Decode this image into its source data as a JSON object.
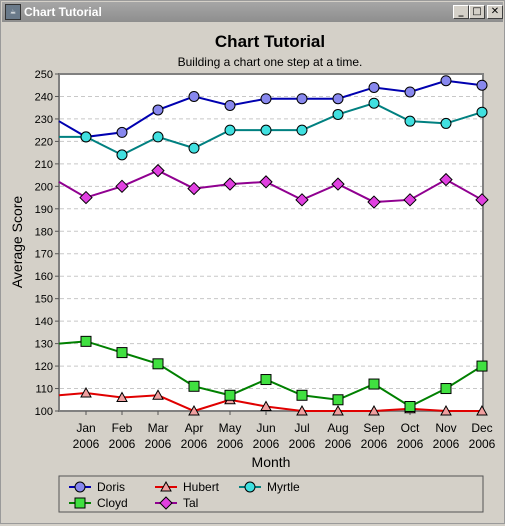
{
  "window": {
    "title": "Chart Tutorial",
    "minimize_glyph": "_",
    "maximize_glyph": "□",
    "close_glyph": "✕",
    "icon": "java-app-icon"
  },
  "chart_data": {
    "type": "line",
    "title": "Chart Tutorial",
    "subtitle": "Building a chart one step at a time.",
    "xlabel": "Month",
    "ylabel": "Average Score",
    "ylim": [
      100,
      250
    ],
    "ytick_step": 10,
    "grid": true,
    "legend_position": "bottom",
    "categories": [
      [
        "Jan",
        "2006"
      ],
      [
        "Feb",
        "2006"
      ],
      [
        "Mar",
        "2006"
      ],
      [
        "Apr",
        "2006"
      ],
      [
        "May",
        "2006"
      ],
      [
        "Jun",
        "2006"
      ],
      [
        "Jul",
        "2006"
      ],
      [
        "Aug",
        "2006"
      ],
      [
        "Sep",
        "2006"
      ],
      [
        "Oct",
        "2006"
      ],
      [
        "Nov",
        "2006"
      ],
      [
        "Dec",
        "2006"
      ]
    ],
    "series": [
      {
        "name": "Doris",
        "color": "#0000b0",
        "marker": "circle",
        "fill": "#8888ee",
        "start": 229,
        "values": [
          222,
          224,
          234,
          240,
          236,
          239,
          239,
          239,
          244,
          242,
          247,
          245
        ]
      },
      {
        "name": "Hubert",
        "color": "#e00000",
        "marker": "triangle",
        "fill": "#f0a0a0",
        "start": 107,
        "values": [
          108,
          106,
          107,
          100,
          105,
          102,
          100,
          100,
          100,
          101,
          100,
          100
        ]
      },
      {
        "name": "Myrtle",
        "color": "#008080",
        "marker": "circle",
        "fill": "#40e0e0",
        "start": 222,
        "values": [
          222,
          214,
          222,
          217,
          225,
          225,
          225,
          232,
          237,
          229,
          228,
          233
        ]
      },
      {
        "name": "Cloyd",
        "color": "#008000",
        "marker": "square",
        "fill": "#40e040",
        "start": 130,
        "values": [
          131,
          126,
          121,
          111,
          107,
          114,
          107,
          105,
          112,
          102,
          110,
          120
        ]
      },
      {
        "name": "Tal",
        "color": "#900090",
        "marker": "diamond",
        "fill": "#e040e0",
        "start": 202,
        "values": [
          195,
          200,
          207,
          199,
          201,
          202,
          194,
          201,
          193,
          194,
          203,
          194
        ]
      }
    ]
  }
}
